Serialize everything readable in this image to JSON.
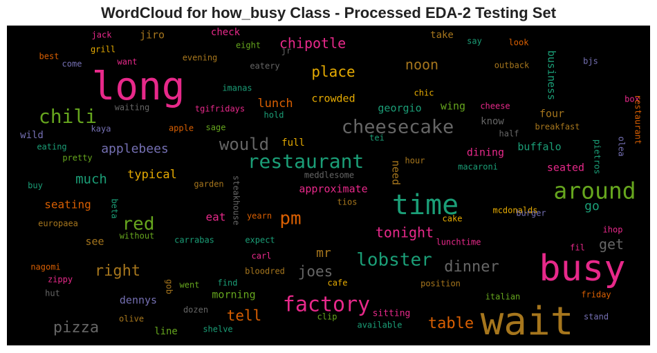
{
  "chart_data": {
    "type": "wordcloud",
    "title": "WordCloud for how_busy Class - Processed EDA-2 Testing Set",
    "background": "#000000",
    "palette": {
      "pink": "#e7298a",
      "green": "#1b9e77",
      "orange": "#d95f02",
      "purple": "#7570b3",
      "lime": "#66a61e",
      "gold": "#e6ab02",
      "brown": "#a6761d",
      "gray": "#666666"
    },
    "words": [
      {
        "text": "long",
        "size": 56,
        "color": "pink"
      },
      {
        "text": "wait",
        "size": 56,
        "color": "brown"
      },
      {
        "text": "busy",
        "size": 52,
        "color": "pink"
      },
      {
        "text": "time",
        "size": 40,
        "color": "green"
      },
      {
        "text": "around",
        "size": 33,
        "color": "lime"
      },
      {
        "text": "factory",
        "size": 30,
        "color": "pink"
      },
      {
        "text": "restaurant",
        "size": 28,
        "color": "green"
      },
      {
        "text": "cheesecake",
        "size": 27,
        "color": "gray"
      },
      {
        "text": "chili",
        "size": 28,
        "color": "lime"
      },
      {
        "text": "lobster",
        "size": 26,
        "color": "green"
      },
      {
        "text": "red",
        "size": 26,
        "color": "lime"
      },
      {
        "text": "pm",
        "size": 26,
        "color": "orange"
      },
      {
        "text": "would",
        "size": 24,
        "color": "gray"
      },
      {
        "text": "dinner",
        "size": 22,
        "color": "gray"
      },
      {
        "text": "right",
        "size": 22,
        "color": "brown"
      },
      {
        "text": "pizza",
        "size": 22,
        "color": "gray"
      },
      {
        "text": "table",
        "size": 22,
        "color": "orange"
      },
      {
        "text": "place",
        "size": 21,
        "color": "gold"
      },
      {
        "text": "tell",
        "size": 21,
        "color": "orange"
      },
      {
        "text": "joes",
        "size": 21,
        "color": "gray"
      },
      {
        "text": "chipotle",
        "size": 20,
        "color": "pink"
      },
      {
        "text": "tonight",
        "size": 20,
        "color": "pink"
      },
      {
        "text": "noon",
        "size": 20,
        "color": "brown"
      },
      {
        "text": "much",
        "size": 19,
        "color": "green"
      },
      {
        "text": "applebees",
        "size": 18,
        "color": "purple"
      },
      {
        "text": "get",
        "size": 20,
        "color": "gray"
      },
      {
        "text": "mr",
        "size": 18,
        "color": "brown"
      },
      {
        "text": "go",
        "size": 18,
        "color": "green"
      },
      {
        "text": "lunch",
        "size": 17,
        "color": "orange"
      },
      {
        "text": "typical",
        "size": 17,
        "color": "gold"
      },
      {
        "text": "seating",
        "size": 16,
        "color": "orange"
      },
      {
        "text": "business",
        "size": 15,
        "color": "green"
      },
      {
        "text": "crowded",
        "size": 15,
        "color": "gold"
      },
      {
        "text": "georgio",
        "size": 15,
        "color": "green"
      },
      {
        "text": "buffalo",
        "size": 15,
        "color": "green"
      },
      {
        "text": "seated",
        "size": 15,
        "color": "pink"
      },
      {
        "text": "approximate",
        "size": 15,
        "color": "pink"
      },
      {
        "text": "dining",
        "size": 15,
        "color": "pink"
      },
      {
        "text": "four",
        "size": 15,
        "color": "brown"
      },
      {
        "text": "wing",
        "size": 15,
        "color": "lime"
      },
      {
        "text": "need",
        "size": 15,
        "color": "brown"
      },
      {
        "text": "morning",
        "size": 15,
        "color": "lime"
      },
      {
        "text": "dennys",
        "size": 15,
        "color": "purple"
      },
      {
        "text": "see",
        "size": 15,
        "color": "brown"
      },
      {
        "text": "eat",
        "size": 16,
        "color": "pink"
      },
      {
        "text": "jiro",
        "size": 15,
        "color": "brown"
      },
      {
        "text": "check",
        "size": 14,
        "color": "pink"
      },
      {
        "text": "take",
        "size": 14,
        "color": "brown"
      },
      {
        "text": "full",
        "size": 14,
        "color": "gold"
      },
      {
        "text": "know",
        "size": 14,
        "color": "gray"
      },
      {
        "text": "wild",
        "size": 14,
        "color": "purple"
      },
      {
        "text": "line",
        "size": 14,
        "color": "lime"
      },
      {
        "text": "sitting",
        "size": 13,
        "color": "pink"
      },
      {
        "text": "chic",
        "size": 12,
        "color": "gold"
      },
      {
        "text": "cheese",
        "size": 12,
        "color": "pink"
      },
      {
        "text": "outback",
        "size": 12,
        "color": "brown"
      },
      {
        "text": "look",
        "size": 12,
        "color": "orange"
      },
      {
        "text": "say",
        "size": 12,
        "color": "green"
      },
      {
        "text": "bjs",
        "size": 12,
        "color": "purple"
      },
      {
        "text": "box",
        "size": 12,
        "color": "pink"
      },
      {
        "text": "restaurant",
        "size": 12,
        "color": "orange"
      },
      {
        "text": "olea",
        "size": 12,
        "color": "purple"
      },
      {
        "text": "pietros",
        "size": 12,
        "color": "green"
      },
      {
        "text": "breakfast",
        "size": 12,
        "color": "brown"
      },
      {
        "text": "half",
        "size": 12,
        "color": "gray"
      },
      {
        "text": "macaroni",
        "size": 12,
        "color": "green"
      },
      {
        "text": "hour",
        "size": 12,
        "color": "brown"
      },
      {
        "text": "mcdonalds",
        "size": 12,
        "color": "gold"
      },
      {
        "text": "burger",
        "size": 12,
        "color": "purple"
      },
      {
        "text": "ihop",
        "size": 12,
        "color": "pink"
      },
      {
        "text": "fil",
        "size": 12,
        "color": "pink"
      },
      {
        "text": "lunchtime",
        "size": 12,
        "color": "pink"
      },
      {
        "text": "cake",
        "size": 12,
        "color": "gold"
      },
      {
        "text": "tios",
        "size": 12,
        "color": "brown"
      },
      {
        "text": "tei",
        "size": 12,
        "color": "green"
      },
      {
        "text": "position",
        "size": 12,
        "color": "brown"
      },
      {
        "text": "italian",
        "size": 12,
        "color": "lime"
      },
      {
        "text": "friday",
        "size": 12,
        "color": "orange"
      },
      {
        "text": "stand",
        "size": 12,
        "color": "purple"
      },
      {
        "text": "available",
        "size": 12,
        "color": "green"
      },
      {
        "text": "clip",
        "size": 12,
        "color": "lime"
      },
      {
        "text": "cafe",
        "size": 12,
        "color": "gold"
      },
      {
        "text": "bloodred",
        "size": 12,
        "color": "brown"
      },
      {
        "text": "carl",
        "size": 12,
        "color": "pink"
      },
      {
        "text": "find",
        "size": 12,
        "color": "green"
      },
      {
        "text": "went",
        "size": 12,
        "color": "lime"
      },
      {
        "text": "dozen",
        "size": 12,
        "color": "gray"
      },
      {
        "text": "shelve",
        "size": 12,
        "color": "green"
      },
      {
        "text": "gob",
        "size": 12,
        "color": "brown"
      },
      {
        "text": "olive",
        "size": 12,
        "color": "brown"
      },
      {
        "text": "hut",
        "size": 12,
        "color": "gray"
      },
      {
        "text": "zippy",
        "size": 12,
        "color": "pink"
      },
      {
        "text": "nagomi",
        "size": 12,
        "color": "orange"
      },
      {
        "text": "europaea",
        "size": 12,
        "color": "brown"
      },
      {
        "text": "buy",
        "size": 12,
        "color": "green"
      },
      {
        "text": "beta",
        "size": 12,
        "color": "green"
      },
      {
        "text": "without",
        "size": 12,
        "color": "lime"
      },
      {
        "text": "carrabas",
        "size": 12,
        "color": "green"
      },
      {
        "text": "expect",
        "size": 12,
        "color": "green"
      },
      {
        "text": "yearn",
        "size": 12,
        "color": "orange"
      },
      {
        "text": "steakhouse",
        "size": 12,
        "color": "gray"
      },
      {
        "text": "meddlesome",
        "size": 12,
        "color": "gray"
      },
      {
        "text": "garden",
        "size": 12,
        "color": "brown"
      },
      {
        "text": "pretty",
        "size": 12,
        "color": "lime"
      },
      {
        "text": "eating",
        "size": 12,
        "color": "green"
      },
      {
        "text": "kaya",
        "size": 12,
        "color": "purple"
      },
      {
        "text": "apple",
        "size": 12,
        "color": "orange"
      },
      {
        "text": "sage",
        "size": 12,
        "color": "lime"
      },
      {
        "text": "hold",
        "size": 12,
        "color": "green"
      },
      {
        "text": "waiting",
        "size": 12,
        "color": "gray"
      },
      {
        "text": "tgifridays",
        "size": 12,
        "color": "pink"
      },
      {
        "text": "imanas",
        "size": 12,
        "color": "green"
      },
      {
        "text": "eatery",
        "size": 12,
        "color": "gray"
      },
      {
        "text": "evening",
        "size": 12,
        "color": "brown"
      },
      {
        "text": "jr",
        "size": 12,
        "color": "gray"
      },
      {
        "text": "eight",
        "size": 12,
        "color": "lime"
      },
      {
        "text": "want",
        "size": 12,
        "color": "pink"
      },
      {
        "text": "come",
        "size": 12,
        "color": "purple"
      },
      {
        "text": "best",
        "size": 12,
        "color": "orange"
      },
      {
        "text": "grill",
        "size": 12,
        "color": "gold"
      },
      {
        "text": "jack",
        "size": 12,
        "color": "pink"
      }
    ]
  }
}
